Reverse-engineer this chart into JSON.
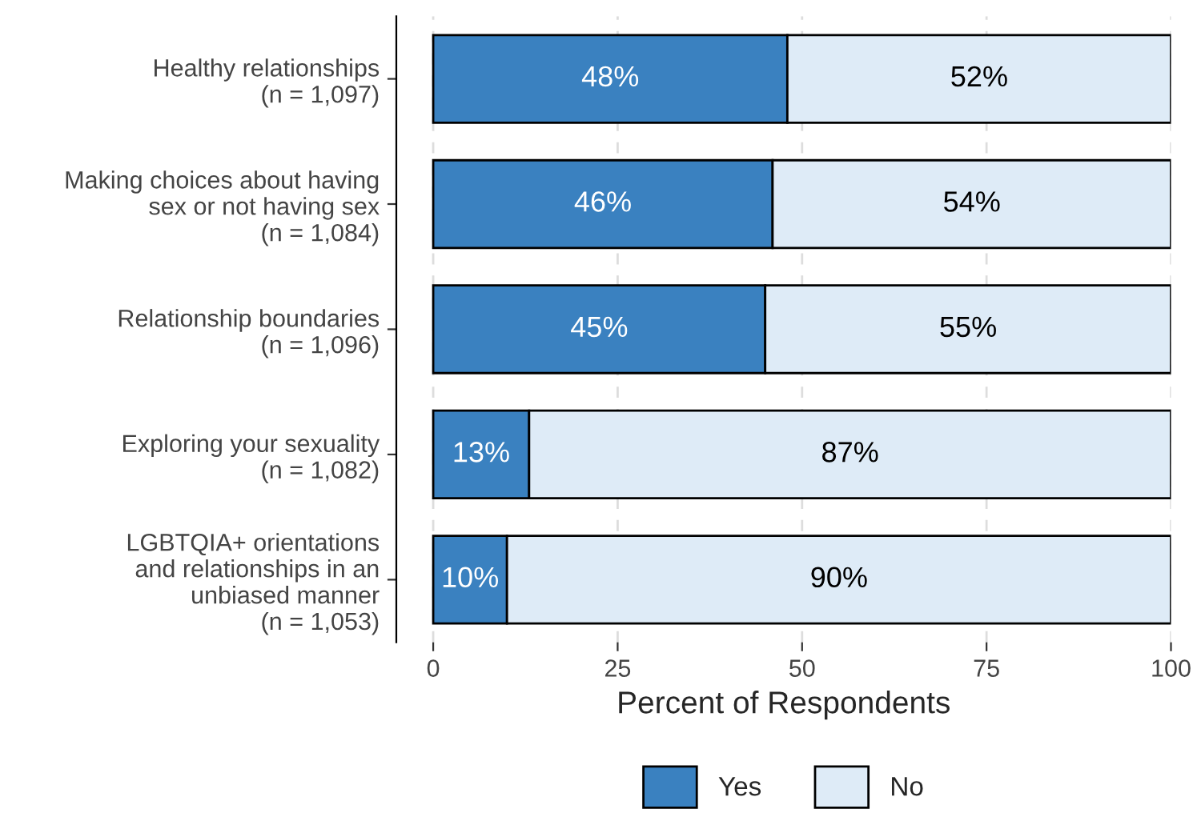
{
  "chart_data": {
    "type": "bar",
    "orientation": "horizontal",
    "stacked": true,
    "categories": [
      "Healthy relationships\n(n = 1,097)",
      "Making choices about having\nsex or not having sex\n(n = 1,084)",
      "Relationship boundaries\n(n = 1,096)",
      "Exploring your sexuality\n(n = 1,082)",
      "LGBTQIA+ orientations\nand relationships in an\nunbiased manner\n(n = 1,053)"
    ],
    "series": [
      {
        "name": "Yes",
        "color": "#3a81c0",
        "values": [
          48,
          46,
          45,
          13,
          10
        ],
        "value_labels": [
          "48%",
          "46%",
          "45%",
          "13%",
          "10%"
        ]
      },
      {
        "name": "No",
        "color": "#deebf7",
        "values": [
          52,
          54,
          55,
          87,
          90
        ],
        "value_labels": [
          "52%",
          "54%",
          "55%",
          "87%",
          "90%"
        ]
      }
    ],
    "xlabel": "Percent of Respondents",
    "xlim": [
      -5,
      100
    ],
    "xticks": [
      0,
      25,
      50,
      75,
      100
    ],
    "grid": "x",
    "legend": "bottom"
  }
}
